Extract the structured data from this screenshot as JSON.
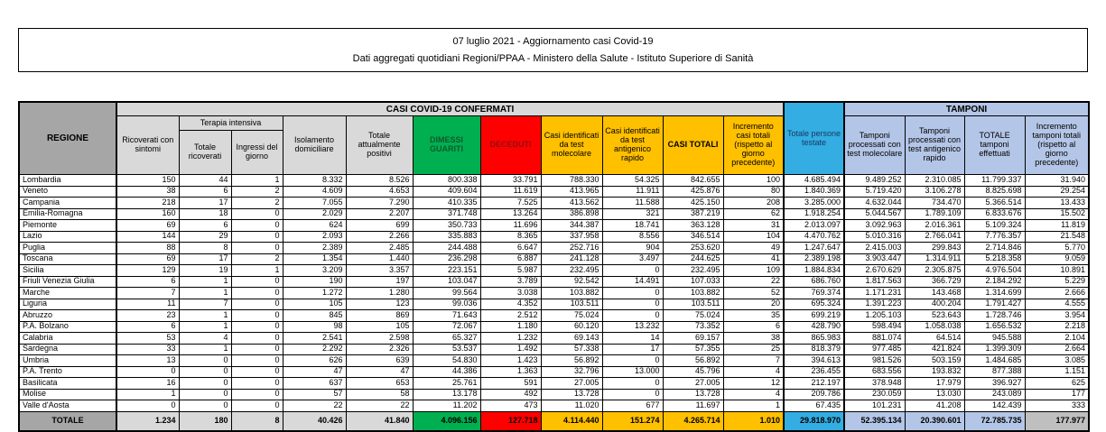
{
  "title": {
    "line1": "07 luglio 2021 - Aggiornamento casi Covid-19",
    "line2": "Dati aggregati quotidiani Regioni/PPAA - Ministero della Salute - Istituto Superiore di Sanità"
  },
  "palette": {
    "green": "#00B050",
    "red": "#FF0000",
    "gold": "#FFC000",
    "blue": "#33ADE2",
    "periwinkle": "#B4C6E7",
    "gray_header": "#A6A6A6",
    "gray_light": "#D9D9D9",
    "gray_mid": "#BFBFBF",
    "text_green_dark": "#0E5A2D",
    "text_red_dark": "#8F1010",
    "text_blue_dark": "#17375E"
  },
  "table": {
    "group_headers": {
      "confirmed": "CASI COVID-19 CONFERMATI",
      "tamponi": "TAMPONI",
      "terapia_intensiva": "Terapia intensiva"
    },
    "headers": {
      "regione": "REGIONE",
      "ricoverati": "Ricoverati con sintomi",
      "totale_ricoverati": "Totale ricoverati",
      "ingressi": "Ingressi del giorno",
      "isolamento": "Isolamento domiciliare",
      "attualmente_positivi": "Totale attualmente positivi",
      "dimessi": "DIMESSI GUARITI",
      "deceduti": "DECEDUTI",
      "casi_molecolare": "Casi identificati da test molecolare",
      "casi_antigenico": "Casi identificati da test antigenico rapido",
      "casi_totali": "CASI TOTALI",
      "incremento_casi": "Incremento casi totali (rispetto al giorno precedente)",
      "persone_testate": "Totale persone testate",
      "tamponi_molecolare": "Tamponi processati con test molecolare",
      "tamponi_antigenico": "Tamponi processati con test antigenico rapido",
      "totale_tamponi": "TOTALE tamponi effettuati",
      "incremento_tamponi": "Incremento tamponi totali (rispetto al giorno precedente)"
    },
    "rows": [
      {
        "region": "Lombardia",
        "values": [
          "150",
          "44",
          "1",
          "8.332",
          "8.526",
          "800.338",
          "33.791",
          "788.330",
          "54.325",
          "842.655",
          "100",
          "4.685.494",
          "9.489.252",
          "2.310.085",
          "11.799.337",
          "31.940"
        ]
      },
      {
        "region": "Veneto",
        "values": [
          "38",
          "6",
          "2",
          "4.609",
          "4.653",
          "409.604",
          "11.619",
          "413.965",
          "11.911",
          "425.876",
          "80",
          "1.840.369",
          "5.719.420",
          "3.106.278",
          "8.825.698",
          "29.254"
        ]
      },
      {
        "region": "Campania",
        "values": [
          "218",
          "17",
          "2",
          "7.055",
          "7.290",
          "410.335",
          "7.525",
          "413.562",
          "11.588",
          "425.150",
          "208",
          "3.285.000",
          "4.632.044",
          "734.470",
          "5.366.514",
          "13.433"
        ]
      },
      {
        "region": "Emilia-Romagna",
        "values": [
          "160",
          "18",
          "0",
          "2.029",
          "2.207",
          "371.748",
          "13.264",
          "386.898",
          "321",
          "387.219",
          "62",
          "1.918.254",
          "5.044.567",
          "1.789.109",
          "6.833.676",
          "15.502"
        ]
      },
      {
        "region": "Piemonte",
        "values": [
          "69",
          "6",
          "0",
          "624",
          "699",
          "350.733",
          "11.696",
          "344.387",
          "18.741",
          "363.128",
          "31",
          "2.013.097",
          "3.092.963",
          "2.016.361",
          "5.109.324",
          "11.819"
        ]
      },
      {
        "region": "Lazio",
        "values": [
          "144",
          "29",
          "0",
          "2.093",
          "2.266",
          "335.883",
          "8.365",
          "337.958",
          "8.556",
          "346.514",
          "104",
          "4.470.762",
          "5.010.316",
          "2.766.041",
          "7.776.357",
          "21.548"
        ]
      },
      {
        "region": "Puglia",
        "values": [
          "88",
          "8",
          "0",
          "2.389",
          "2.485",
          "244.488",
          "6.647",
          "252.716",
          "904",
          "253.620",
          "49",
          "1.247.647",
          "2.415.003",
          "299.843",
          "2.714.846",
          "5.770"
        ]
      },
      {
        "region": "Toscana",
        "values": [
          "69",
          "17",
          "2",
          "1.354",
          "1.440",
          "236.298",
          "6.887",
          "241.128",
          "3.497",
          "244.625",
          "41",
          "2.389.198",
          "3.903.447",
          "1.314.911",
          "5.218.358",
          "9.059"
        ]
      },
      {
        "region": "Sicilia",
        "values": [
          "129",
          "19",
          "1",
          "3.209",
          "3.357",
          "223.151",
          "5.987",
          "232.495",
          "0",
          "232.495",
          "109",
          "1.884.834",
          "2.670.629",
          "2.305.875",
          "4.976.504",
          "10.891"
        ]
      },
      {
        "region": "Friuli Venezia Giulia",
        "values": [
          "6",
          "1",
          "0",
          "190",
          "197",
          "103.047",
          "3.789",
          "92.542",
          "14.491",
          "107.033",
          "22",
          "686.760",
          "1.817.563",
          "366.729",
          "2.184.292",
          "5.229"
        ]
      },
      {
        "region": "Marche",
        "values": [
          "7",
          "1",
          "0",
          "1.272",
          "1.280",
          "99.564",
          "3.038",
          "103.882",
          "0",
          "103.882",
          "52",
          "769.374",
          "1.171.231",
          "143.468",
          "1.314.699",
          "2.666"
        ]
      },
      {
        "region": "Liguria",
        "values": [
          "11",
          "7",
          "0",
          "105",
          "123",
          "99.036",
          "4.352",
          "103.511",
          "0",
          "103.511",
          "20",
          "695.324",
          "1.391.223",
          "400.204",
          "1.791.427",
          "4.555"
        ]
      },
      {
        "region": "Abruzzo",
        "values": [
          "23",
          "1",
          "0",
          "845",
          "869",
          "71.643",
          "2.512",
          "75.024",
          "0",
          "75.024",
          "35",
          "699.219",
          "1.205.103",
          "523.643",
          "1.728.746",
          "3.954"
        ]
      },
      {
        "region": "P.A. Bolzano",
        "values": [
          "6",
          "1",
          "0",
          "98",
          "105",
          "72.067",
          "1.180",
          "60.120",
          "13.232",
          "73.352",
          "6",
          "428.790",
          "598.494",
          "1.058.038",
          "1.656.532",
          "2.218"
        ]
      },
      {
        "region": "Calabria",
        "values": [
          "53",
          "4",
          "0",
          "2.541",
          "2.598",
          "65.327",
          "1.232",
          "69.143",
          "14",
          "69.157",
          "38",
          "865.983",
          "881.074",
          "64.514",
          "945.588",
          "2.104"
        ]
      },
      {
        "region": "Sardegna",
        "values": [
          "33",
          "1",
          "0",
          "2.292",
          "2.326",
          "53.537",
          "1.492",
          "57.338",
          "17",
          "57.355",
          "25",
          "818.379",
          "977.485",
          "421.824",
          "1.399.309",
          "2.664"
        ]
      },
      {
        "region": "Umbria",
        "values": [
          "13",
          "0",
          "0",
          "626",
          "639",
          "54.830",
          "1.423",
          "56.892",
          "0",
          "56.892",
          "7",
          "394.613",
          "981.526",
          "503.159",
          "1.484.685",
          "3.085"
        ]
      },
      {
        "region": "P.A. Trento",
        "values": [
          "0",
          "0",
          "0",
          "47",
          "47",
          "44.386",
          "1.363",
          "32.796",
          "13.000",
          "45.796",
          "4",
          "236.455",
          "683.556",
          "193.832",
          "877.388",
          "1.151"
        ]
      },
      {
        "region": "Basilicata",
        "values": [
          "16",
          "0",
          "0",
          "637",
          "653",
          "25.761",
          "591",
          "27.005",
          "0",
          "27.005",
          "12",
          "212.197",
          "378.948",
          "17.979",
          "396.927",
          "625"
        ]
      },
      {
        "region": "Molise",
        "values": [
          "1",
          "0",
          "0",
          "57",
          "58",
          "13.178",
          "492",
          "13.728",
          "0",
          "13.728",
          "4",
          "209.786",
          "230.059",
          "13.030",
          "243.089",
          "177"
        ]
      },
      {
        "region": "Valle d'Aosta",
        "values": [
          "0",
          "0",
          "0",
          "22",
          "22",
          "11.202",
          "473",
          "11.020",
          "677",
          "11.697",
          "1",
          "67.435",
          "101.231",
          "41.208",
          "142.439",
          "333"
        ]
      }
    ],
    "total_row": {
      "label": "TOTALE",
      "values": [
        "1.234",
        "180",
        "8",
        "40.426",
        "41.840",
        "4.096.156",
        "127.718",
        "4.114.440",
        "151.274",
        "4.265.714",
        "1.010",
        "29.818.970",
        "52.395.134",
        "20.390.601",
        "72.785.735",
        "177.977"
      ]
    }
  }
}
